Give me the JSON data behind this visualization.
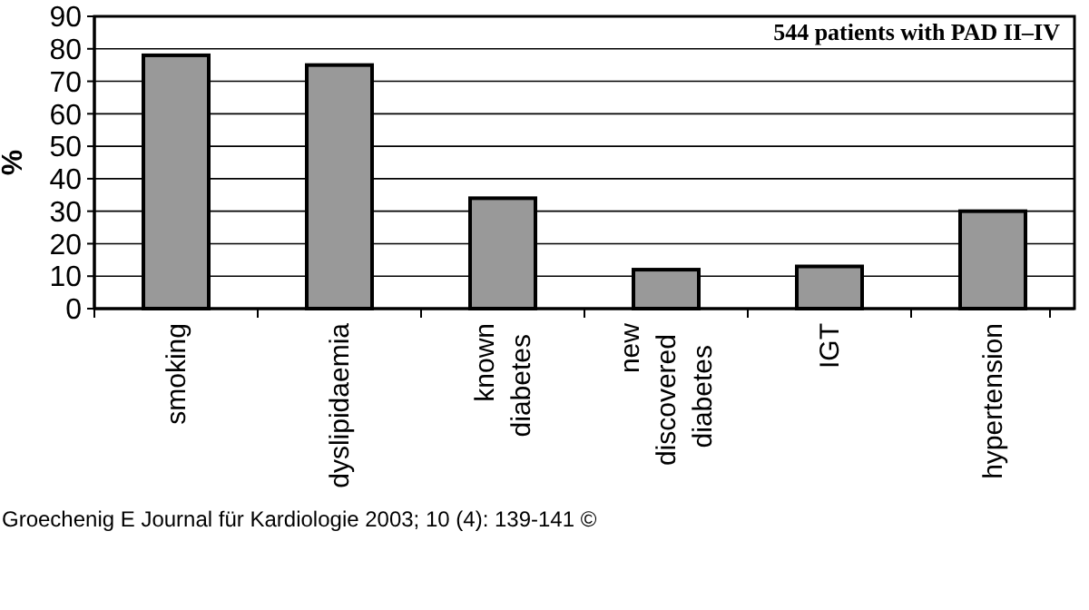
{
  "chart_data": {
    "type": "bar",
    "title": "544 patients with PAD II–IV",
    "ylabel": "%",
    "categories": [
      "smoking",
      "dyslipidaemia",
      "known\ndiabetes",
      "new\ndiscovered\ndiabetes",
      "IGT",
      "hypertension"
    ],
    "values": [
      78,
      75,
      34,
      12,
      13,
      30
    ],
    "color": "#999999",
    "ylim": [
      0,
      90
    ],
    "yticks": [
      0,
      10,
      20,
      30,
      40,
      50,
      60,
      70,
      80,
      90
    ],
    "grid": "y",
    "annotations": [
      "Groechenig E Journal für Kardiologie 2003; 10 (4): 139-141 ©"
    ]
  }
}
